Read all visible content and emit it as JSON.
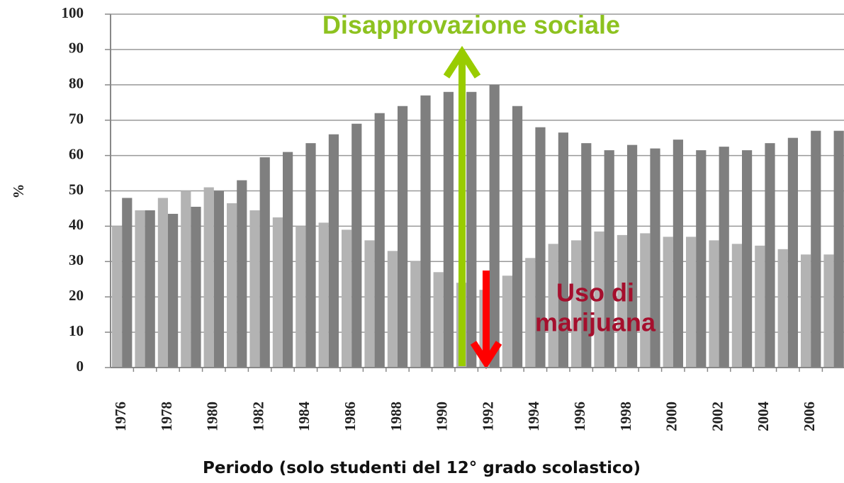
{
  "chart_data": {
    "type": "bar",
    "ylabel": "%",
    "xlabel": "Periodo (solo studenti del 12° grado scolastico)",
    "categories": [
      "1976",
      null,
      "1978",
      null,
      "1980",
      null,
      "1982",
      null,
      "1984",
      null,
      "1986",
      null,
      "1988",
      null,
      "1990",
      null,
      "1992",
      null,
      "1994",
      null,
      "1996",
      null,
      "1998",
      null,
      "2000",
      null,
      "2002",
      null,
      "2004",
      null,
      "2006",
      null
    ],
    "series": [
      {
        "color": "#b3b3b3",
        "values": [
          40,
          44.5,
          48,
          50,
          51,
          46.5,
          44.5,
          42.5,
          40,
          41,
          39,
          36,
          33,
          30,
          27,
          24,
          22,
          26,
          31,
          35,
          36,
          38.5,
          37.5,
          38,
          37,
          37,
          36,
          35,
          34.5,
          33.5,
          32,
          32
        ]
      },
      {
        "color": "#7f7f7f",
        "values": [
          48,
          44.5,
          43.5,
          45.5,
          50,
          53,
          59.5,
          61,
          63.5,
          66,
          69,
          72,
          74,
          77,
          78,
          78,
          80,
          74,
          68,
          66.5,
          63.5,
          61.5,
          63,
          62,
          64.5,
          61.5,
          62.5,
          61.5,
          63.5,
          65,
          67,
          67
        ]
      }
    ],
    "ylim": [
      0,
      100
    ],
    "yticks": [
      0,
      10,
      20,
      30,
      40,
      50,
      60,
      70,
      80,
      90,
      100
    ],
    "grid": true,
    "annotations": [
      {
        "lines": [
          "Disapprovazione sociale"
        ],
        "color": "#8dc21f"
      },
      {
        "lines": [
          "Uso di",
          "marijuana"
        ],
        "color": "#a50f2d"
      }
    ]
  }
}
